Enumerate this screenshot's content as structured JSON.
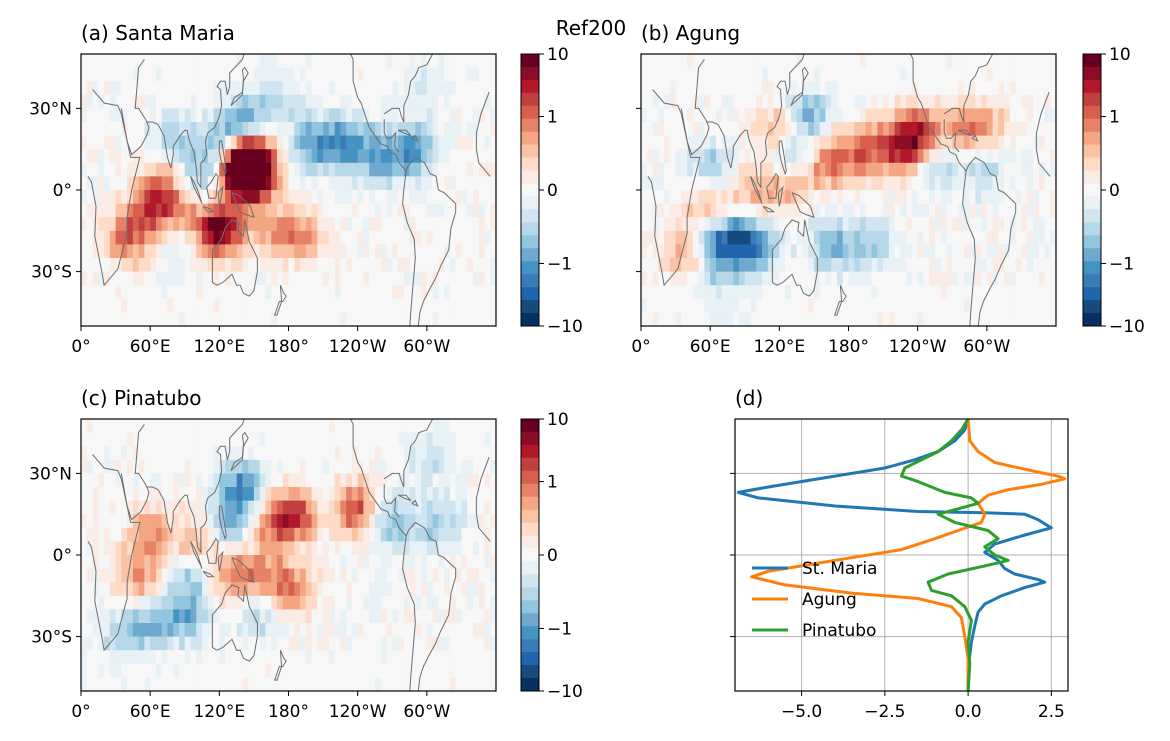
{
  "suptitle": "Ref200",
  "chart_data": [
    {
      "type": "heatmap",
      "title": "(a) Santa Maria",
      "xticks": [
        "0°",
        "60°E",
        "120°E",
        "180°",
        "120°W",
        "60°W"
      ],
      "yticks": [
        "30°N",
        "0°",
        "30°S"
      ],
      "colorbar": {
        "ticks": [
          "10",
          "1",
          "0",
          "−1",
          "−10"
        ],
        "cmap": "RdBu_r",
        "scale": "symlog"
      },
      "features": [
        {
          "lon": 145,
          "lat": 10,
          "v": 1.0
        },
        {
          "lon": 150,
          "lat": 6,
          "v": 0.9
        },
        {
          "lon": 137,
          "lat": 8,
          "v": 0.75
        },
        {
          "lon": 125,
          "lat": -13,
          "v": 0.7
        },
        {
          "lon": 112,
          "lat": -18,
          "v": 0.55
        },
        {
          "lon": 60,
          "lat": -8,
          "v": 0.6
        },
        {
          "lon": 40,
          "lat": -18,
          "v": 0.55
        },
        {
          "lon": 70,
          "lat": 3,
          "v": 0.4
        },
        {
          "lon": 90,
          "lat": -7,
          "v": 0.45
        },
        {
          "lon": 170,
          "lat": -15,
          "v": 0.4
        },
        {
          "lon": 195,
          "lat": -17,
          "v": 0.35
        },
        {
          "lon": 140,
          "lat": 25,
          "v": -0.55
        },
        {
          "lon": 120,
          "lat": 15,
          "v": -0.45
        },
        {
          "lon": 200,
          "lat": 17,
          "v": -0.5
        },
        {
          "lon": 230,
          "lat": 17,
          "v": -0.6
        },
        {
          "lon": 260,
          "lat": 12,
          "v": -0.5
        },
        {
          "lon": 290,
          "lat": 15,
          "v": -0.55
        },
        {
          "lon": 170,
          "lat": 35,
          "v": -0.35
        },
        {
          "lon": 100,
          "lat": 3,
          "v": -0.45
        },
        {
          "lon": 90,
          "lat": -20,
          "v": -0.3
        },
        {
          "lon": 300,
          "lat": 40,
          "v": -0.25
        },
        {
          "lon": 80,
          "lat": 20,
          "v": -0.3
        }
      ]
    },
    {
      "type": "heatmap",
      "title": "(b) Agung",
      "xticks": [
        "0°",
        "60°E",
        "120°E",
        "180°",
        "120°W",
        "60°W"
      ],
      "yticks": [],
      "colorbar": {
        "ticks": [
          "10",
          "1",
          "0",
          "−1",
          "−10"
        ],
        "cmap": "RdBu_r",
        "scale": "symlog"
      },
      "features": [
        {
          "lon": 240,
          "lat": 20,
          "v": 0.8
        },
        {
          "lon": 220,
          "lat": 15,
          "v": 0.55
        },
        {
          "lon": 190,
          "lat": 14,
          "v": 0.55
        },
        {
          "lon": 160,
          "lat": 10,
          "v": 0.5
        },
        {
          "lon": 120,
          "lat": 20,
          "v": 0.55
        },
        {
          "lon": 125,
          "lat": 3,
          "v": 0.6
        },
        {
          "lon": 100,
          "lat": 0,
          "v": 0.45
        },
        {
          "lon": 60,
          "lat": -8,
          "v": 0.5
        },
        {
          "lon": 40,
          "lat": -22,
          "v": 0.45
        },
        {
          "lon": 280,
          "lat": 23,
          "v": 0.4
        },
        {
          "lon": 300,
          "lat": 23,
          "v": 0.35
        },
        {
          "lon": 80,
          "lat": -18,
          "v": -0.6
        },
        {
          "lon": 60,
          "lat": -18,
          "v": -0.55
        },
        {
          "lon": 100,
          "lat": -20,
          "v": -0.55
        },
        {
          "lon": 130,
          "lat": 13,
          "v": -0.55
        },
        {
          "lon": 145,
          "lat": 28,
          "v": -0.45
        },
        {
          "lon": 115,
          "lat": 5,
          "v": -0.35
        },
        {
          "lon": 165,
          "lat": -20,
          "v": -0.45
        },
        {
          "lon": 200,
          "lat": -20,
          "v": -0.35
        },
        {
          "lon": 60,
          "lat": 8,
          "v": -0.35
        },
        {
          "lon": 300,
          "lat": 8,
          "v": -0.3
        },
        {
          "lon": 260,
          "lat": 10,
          "v": -0.3
        },
        {
          "lon": 70,
          "lat": -35,
          "v": -0.3
        }
      ]
    },
    {
      "type": "heatmap",
      "title": "(c) Pinatubo",
      "xticks": [
        "0°",
        "60°E",
        "120°E",
        "180°",
        "120°W",
        "60°W"
      ],
      "yticks": [
        "30°N",
        "0°",
        "30°S"
      ],
      "colorbar": {
        "ticks": [
          "10",
          "1",
          "0",
          "−1",
          "−10"
        ],
        "cmap": "RdBu_r",
        "scale": "symlog"
      },
      "features": [
        {
          "lon": 235,
          "lat": 17,
          "v": 0.75
        },
        {
          "lon": 180,
          "lat": 15,
          "v": 0.6
        },
        {
          "lon": 200,
          "lat": 15,
          "v": 0.5
        },
        {
          "lon": 180,
          "lat": -12,
          "v": 0.6
        },
        {
          "lon": 150,
          "lat": -8,
          "v": 0.45
        },
        {
          "lon": 125,
          "lat": -8,
          "v": 0.4
        },
        {
          "lon": 60,
          "lat": 8,
          "v": 0.45
        },
        {
          "lon": 50,
          "lat": -8,
          "v": 0.45
        },
        {
          "lon": 100,
          "lat": 5,
          "v": 0.4
        },
        {
          "lon": 160,
          "lat": 10,
          "v": 0.35
        },
        {
          "lon": 140,
          "lat": 25,
          "v": -0.6
        },
        {
          "lon": 130,
          "lat": 12,
          "v": -0.5
        },
        {
          "lon": 100,
          "lat": -7,
          "v": -0.4
        },
        {
          "lon": 90,
          "lat": -22,
          "v": -0.45
        },
        {
          "lon": 60,
          "lat": -25,
          "v": -0.4
        },
        {
          "lon": 155,
          "lat": -20,
          "v": -0.35
        },
        {
          "lon": 210,
          "lat": 17,
          "v": -0.45
        },
        {
          "lon": 270,
          "lat": 12,
          "v": -0.4
        },
        {
          "lon": 310,
          "lat": 12,
          "v": -0.35
        },
        {
          "lon": 300,
          "lat": 38,
          "v": -0.3
        },
        {
          "lon": 35,
          "lat": -30,
          "v": -0.3
        }
      ]
    },
    {
      "type": "line",
      "title": "(d)",
      "xticks": [
        -5.0,
        -2.5,
        0.0,
        2.5
      ],
      "xlim": [
        -7.0,
        3.0
      ],
      "ylim": [
        -50,
        50
      ],
      "grid": true,
      "legend_position": "center-left",
      "series": [
        {
          "name": "St. Maria",
          "color": "#1f77b4",
          "points": [
            [
              0,
              50
            ],
            [
              -0.1,
              46
            ],
            [
              -0.4,
              42
            ],
            [
              -0.9,
              38
            ],
            [
              -1.6,
              35
            ],
            [
              -2.5,
              32
            ],
            [
              -4.0,
              29
            ],
            [
              -6.0,
              25
            ],
            [
              -6.9,
              23
            ],
            [
              -6.3,
              21
            ],
            [
              -4.0,
              18
            ],
            [
              -1.5,
              16
            ],
            [
              0.5,
              15.5
            ],
            [
              1.7,
              15
            ],
            [
              2.1,
              13
            ],
            [
              2.5,
              10
            ],
            [
              1.6,
              7
            ],
            [
              0.8,
              4
            ],
            [
              0.5,
              1
            ],
            [
              0.9,
              -2
            ],
            [
              1.1,
              -5
            ],
            [
              1.4,
              -7
            ],
            [
              2.1,
              -9
            ],
            [
              2.3,
              -10
            ],
            [
              1.7,
              -12
            ],
            [
              1.0,
              -15
            ],
            [
              0.5,
              -18
            ],
            [
              0.3,
              -21
            ],
            [
              0.2,
              -26
            ],
            [
              0.1,
              -32
            ],
            [
              0,
              -42
            ],
            [
              0,
              -50
            ]
          ]
        },
        {
          "name": "Agung",
          "color": "#ff7f0e",
          "points": [
            [
              0,
              50
            ],
            [
              0.05,
              42
            ],
            [
              0.3,
              38
            ],
            [
              0.8,
              34
            ],
            [
              1.9,
              31
            ],
            [
              2.7,
              29
            ],
            [
              2.9,
              28
            ],
            [
              2.2,
              26
            ],
            [
              1.2,
              24
            ],
            [
              0.6,
              22
            ],
            [
              0.3,
              19
            ],
            [
              0.5,
              15
            ],
            [
              0.4,
              12
            ],
            [
              -0.3,
              9
            ],
            [
              -1.0,
              6
            ],
            [
              -2.0,
              2
            ],
            [
              -3.5,
              -1
            ],
            [
              -5.0,
              -4
            ],
            [
              -6.0,
              -6
            ],
            [
              -6.5,
              -8
            ],
            [
              -5.5,
              -11
            ],
            [
              -3.5,
              -14
            ],
            [
              -1.5,
              -16
            ],
            [
              -0.5,
              -19
            ],
            [
              -0.2,
              -23
            ],
            [
              -0.1,
              -30
            ],
            [
              0,
              -38
            ],
            [
              0,
              -50
            ]
          ]
        },
        {
          "name": "Pinatubo",
          "color": "#2ca02c",
          "points": [
            [
              0,
              50
            ],
            [
              -0.2,
              46
            ],
            [
              -0.5,
              42
            ],
            [
              -0.9,
              38
            ],
            [
              -1.4,
              35
            ],
            [
              -1.9,
              32
            ],
            [
              -2.0,
              29
            ],
            [
              -1.5,
              27
            ],
            [
              -1.1,
              25
            ],
            [
              -0.7,
              23
            ],
            [
              0.1,
              21
            ],
            [
              0.3,
              19
            ],
            [
              -0.3,
              17
            ],
            [
              -0.9,
              15
            ],
            [
              -0.4,
              12
            ],
            [
              0.6,
              9
            ],
            [
              0.9,
              6
            ],
            [
              0.5,
              3
            ],
            [
              0.8,
              0
            ],
            [
              1.2,
              -2
            ],
            [
              0.5,
              -4
            ],
            [
              -0.6,
              -7
            ],
            [
              -1.2,
              -10
            ],
            [
              -1.1,
              -13
            ],
            [
              -0.5,
              -15
            ],
            [
              -0.1,
              -19
            ],
            [
              0.1,
              -24
            ],
            [
              0,
              -32
            ],
            [
              0.05,
              -40
            ],
            [
              0,
              -50
            ]
          ]
        }
      ]
    }
  ]
}
